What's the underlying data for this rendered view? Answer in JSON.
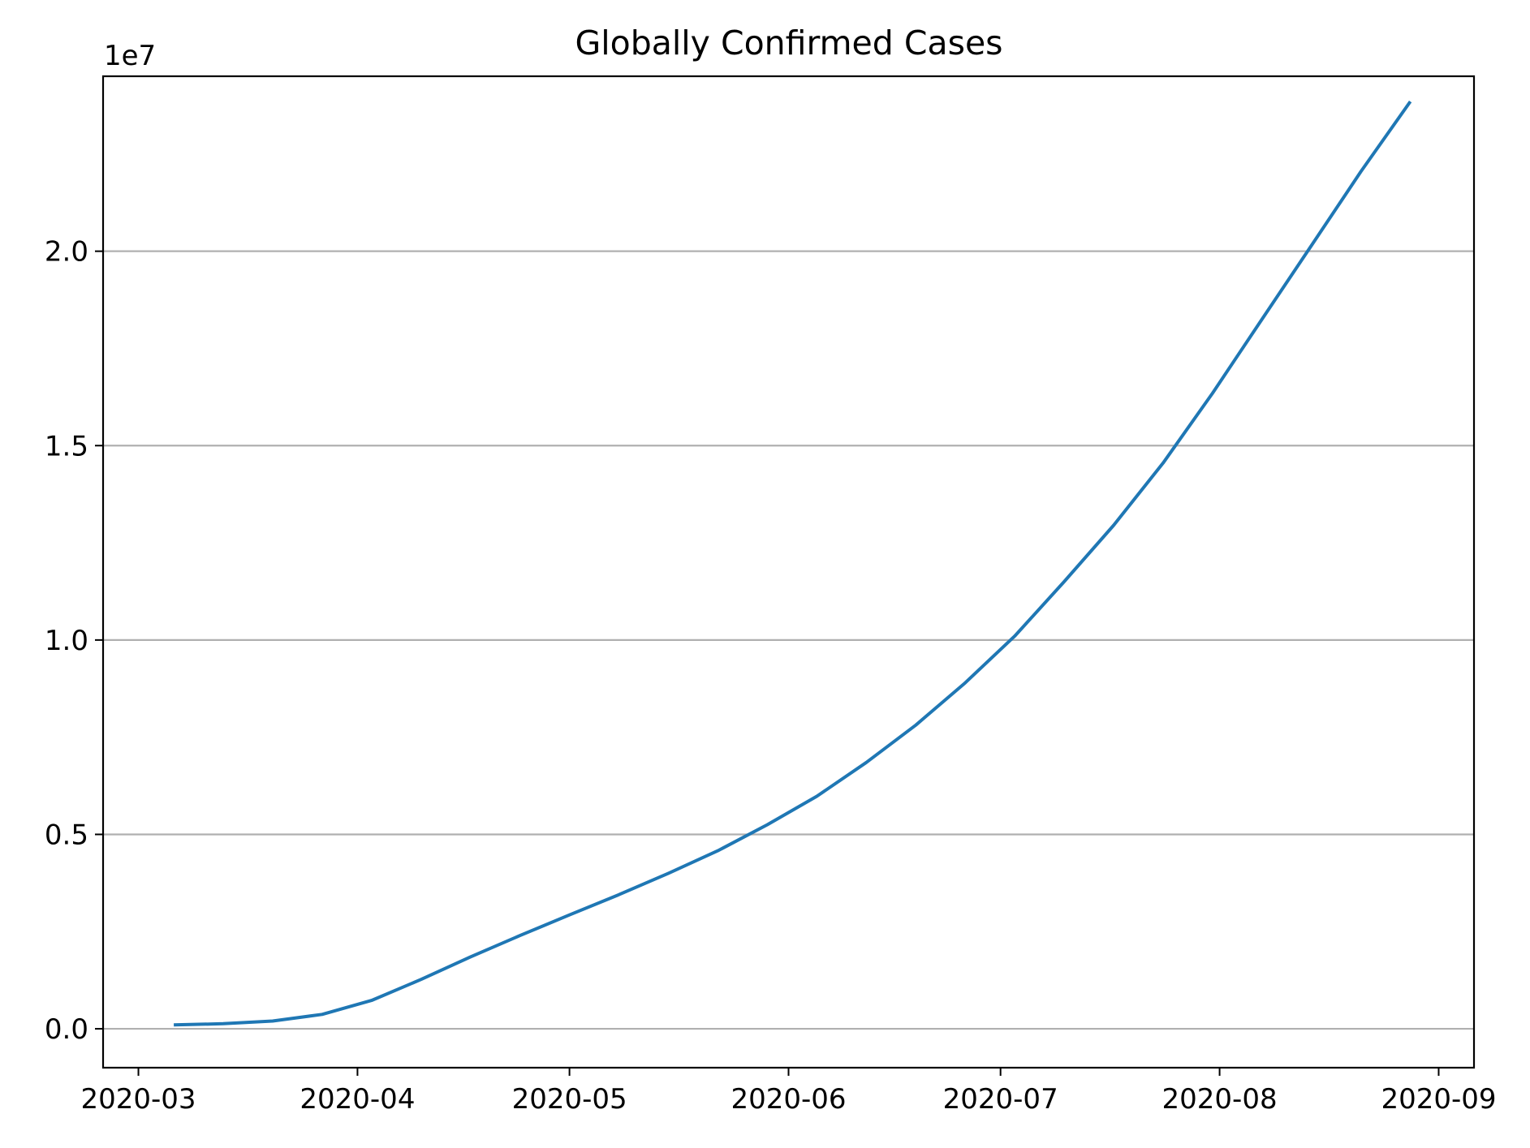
{
  "chart_data": {
    "type": "line",
    "title": "Globally Confirmed Cases",
    "xlabel": "",
    "ylabel": "",
    "y_offset_label": "1e7",
    "y_scale_factor": 10000000,
    "grid": "y-only",
    "legend": "none",
    "series_color": "#1f77b4",
    "xlim": [
      "2020-02-25",
      "2020-09-06"
    ],
    "ylim": [
      -1000000,
      24500000
    ],
    "x_ticks": [
      "2020-03-01",
      "2020-04-01",
      "2020-05-01",
      "2020-06-01",
      "2020-07-01",
      "2020-08-01",
      "2020-09-01"
    ],
    "x_tick_labels": [
      "2020-03",
      "2020-04",
      "2020-05",
      "2020-06",
      "2020-07",
      "2020-08",
      "2020-09"
    ],
    "y_ticks": [
      0,
      5000000,
      10000000,
      15000000,
      20000000
    ],
    "y_tick_labels": [
      "0.0",
      "0.5",
      "1.0",
      "1.5",
      "2.0"
    ],
    "series": [
      {
        "x": [
          "2020-03-06",
          "2020-03-13",
          "2020-03-20",
          "2020-03-27",
          "2020-04-03",
          "2020-04-10",
          "2020-04-17",
          "2020-04-24",
          "2020-05-01",
          "2020-05-08",
          "2020-05-15",
          "2020-05-22",
          "2020-05-29",
          "2020-06-05",
          "2020-06-12",
          "2020-06-19",
          "2020-06-26",
          "2020-07-03",
          "2020-07-10",
          "2020-07-17",
          "2020-07-24",
          "2020-07-31",
          "2020-08-07",
          "2020-08-14",
          "2020-08-21",
          "2020-08-28"
        ],
        "values": [
          100000,
          130000,
          200000,
          370000,
          730000,
          1270000,
          1850000,
          2400000,
          2930000,
          3450000,
          4000000,
          4580000,
          5250000,
          5980000,
          6850000,
          7810000,
          8900000,
          10100000,
          11500000,
          12950000,
          14550000,
          16350000,
          18250000,
          20150000,
          22050000,
          23850000
        ]
      }
    ]
  }
}
